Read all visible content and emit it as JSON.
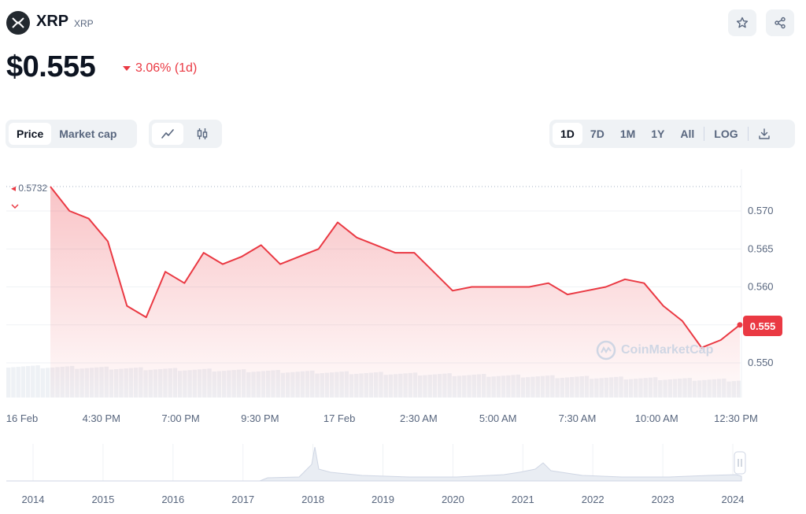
{
  "header": {
    "name": "XRP",
    "symbol": "XRP",
    "logo_icon": "xrp-logo-icon",
    "star_icon": "star-icon",
    "share_icon": "share-icon"
  },
  "price": {
    "value": "$0.555",
    "change": "3.06% (1d)",
    "change_direction": "down",
    "change_color": "#ea3943"
  },
  "toolbar": {
    "metric_tabs": [
      {
        "label": "Price",
        "active": true
      },
      {
        "label": "Market cap",
        "active": false
      }
    ],
    "chart_type_icons": [
      "line-chart-icon",
      "candlestick-icon"
    ],
    "ranges": [
      {
        "label": "1D",
        "active": true
      },
      {
        "label": "7D",
        "active": false
      },
      {
        "label": "1M",
        "active": false
      },
      {
        "label": "1Y",
        "active": false
      },
      {
        "label": "All",
        "active": false
      }
    ],
    "log_label": "LOG",
    "download_icon": "download-icon"
  },
  "chart_data": {
    "type": "area",
    "line_color": "#ea3943",
    "x": [
      "16 Feb",
      "",
      "",
      "",
      "4:30 PM",
      "",
      "",
      "",
      "7:00 PM",
      "",
      "",
      "",
      "9:30 PM",
      "",
      "",
      "",
      "17 Feb",
      "",
      "",
      "",
      "2:30 AM",
      "",
      "",
      "",
      "5:00 AM",
      "",
      "",
      "",
      "7:30 AM",
      "",
      "",
      "",
      "10:00 AM",
      "",
      "",
      "",
      "12:30 PM"
    ],
    "y": [
      0.5732,
      0.57,
      0.569,
      0.566,
      0.5575,
      0.556,
      0.562,
      0.5605,
      0.5645,
      0.563,
      0.564,
      0.5655,
      0.563,
      0.564,
      0.565,
      0.5685,
      0.5665,
      0.5655,
      0.5645,
      0.5645,
      0.562,
      0.5595,
      0.56,
      0.56,
      0.56,
      0.56,
      0.5605,
      0.559,
      0.5595,
      0.56,
      0.561,
      0.5605,
      0.5575,
      0.5555,
      0.552,
      0.553,
      0.555
    ],
    "y_ticks": [
      "0.570",
      "0.565",
      "0.560",
      "0.555",
      "0.550"
    ],
    "x_tick_labels": [
      "16 Feb",
      "4:30 PM",
      "7:00 PM",
      "9:30 PM",
      "17 Feb",
      "2:30 AM",
      "5:00 AM",
      "7:30 AM",
      "10:00 AM",
      "12:30 PM"
    ],
    "high_label": "0.5732",
    "current_label": "0.555",
    "ylim": [
      0.548,
      0.5745
    ],
    "grid": true,
    "watermark": "CoinMarketCap"
  },
  "navigator": {
    "years": [
      "2014",
      "2015",
      "2016",
      "2017",
      "2018",
      "2019",
      "2020",
      "2021",
      "2022",
      "2023",
      "2024"
    ]
  }
}
